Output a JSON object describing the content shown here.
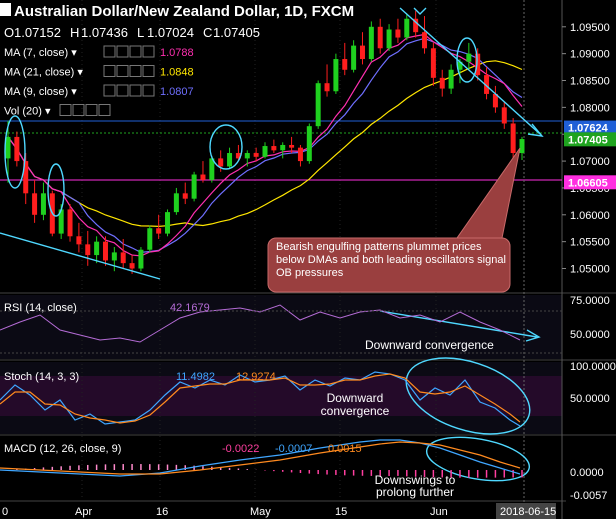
{
  "header": {
    "title": "Australian Dollar/New Zealand Dollar, 1D, FXCM",
    "ohlc": [
      {
        "k": "O",
        "v": "1.07152"
      },
      {
        "k": "H",
        "v": "1.07436"
      },
      {
        "k": "L",
        "v": "1.07024"
      },
      {
        "k": "C",
        "v": "1.07405"
      }
    ],
    "indicators": [
      {
        "label": "MA (7, close)",
        "value": "1.0788",
        "color": "#ff2fb0"
      },
      {
        "label": "MA (21, close)",
        "value": "1.0848",
        "color": "#ffe600"
      },
      {
        "label": "MA (9, close)",
        "value": "1.0807",
        "color": "#6f6fff"
      },
      {
        "label": "Vol (20)",
        "value": "",
        "color": "#ffffff"
      }
    ]
  },
  "price_axis": {
    "ticks": [
      "1.09500",
      "1.09000",
      "1.08500",
      "1.08000",
      "1.07500",
      "1.07000",
      "1.06500",
      "1.06000",
      "1.05500",
      "1.05000"
    ],
    "badges": [
      {
        "value": "1.07624",
        "color": "#1f5fd6"
      },
      {
        "value": "1.07405",
        "color": "#1fa31f"
      },
      {
        "value": "1.06605",
        "color": "#ff2fe0"
      }
    ]
  },
  "rsi": {
    "label": "RSI (14, close)",
    "value": "42.1679",
    "ticks": [
      "75.0000",
      "50.0000"
    ],
    "annotation": "Downward convergence"
  },
  "stoch": {
    "label": "Stoch (14, 3, 3)",
    "k": "11.4982",
    "d": "12.9274",
    "ticks": [
      "100.0000",
      "50.0000"
    ],
    "annotation": "Downward convergence"
  },
  "macd": {
    "label": "MACD (12, 26, close, 9)",
    "hist": "-0.0022",
    "signal": "-0.0007",
    "macd": "0.0015",
    "ticks": [
      "0.0000",
      "-0.0057"
    ],
    "annotation": "Downswings to prolong further"
  },
  "callout": "Bearish engulfing patterns plummet prices below DMAs and both leading oscillators signal OB pressures",
  "x_axis": {
    "labels": [
      "0",
      "Apr",
      "16",
      "May",
      "15",
      "Jun"
    ],
    "current": "2018-06-15"
  },
  "colors": {
    "up": "#1fd11f",
    "down": "#ff1e1e",
    "accent": "#4fd8ff"
  },
  "chart_data": {
    "type": "candlestick",
    "title": "Australian Dollar/New Zealand Dollar, 1D, FXCM",
    "ylim": [
      1.046,
      1.0985
    ],
    "candles": [
      [
        1.0705,
        1.0775,
        1.066,
        1.0745
      ],
      [
        1.0745,
        1.0755,
        1.069,
        1.07
      ],
      [
        1.07,
        1.0715,
        1.062,
        1.064
      ],
      [
        1.064,
        1.0665,
        1.0585,
        1.06
      ],
      [
        1.06,
        1.066,
        1.059,
        1.064
      ],
      [
        1.064,
        1.0645,
        1.056,
        1.0565
      ],
      [
        1.0565,
        1.062,
        1.0555,
        1.061
      ],
      [
        1.061,
        1.062,
        1.055,
        1.056
      ],
      [
        1.056,
        1.0585,
        1.053,
        1.0545
      ],
      [
        1.0545,
        1.057,
        1.0505,
        1.0525
      ],
      [
        1.0525,
        1.056,
        1.051,
        1.055
      ],
      [
        1.055,
        1.056,
        1.0505,
        1.0515
      ],
      [
        1.0515,
        1.054,
        1.0495,
        1.053
      ],
      [
        1.053,
        1.0555,
        1.05,
        1.051
      ],
      [
        1.051,
        1.0525,
        1.049,
        1.05
      ],
      [
        1.05,
        1.054,
        1.0495,
        1.0535
      ],
      [
        1.0535,
        1.058,
        1.053,
        1.0575
      ],
      [
        1.0575,
        1.06,
        1.0555,
        1.0565
      ],
      [
        1.0565,
        1.061,
        1.056,
        1.0605
      ],
      [
        1.0605,
        1.065,
        1.06,
        1.064
      ],
      [
        1.064,
        1.066,
        1.062,
        1.063
      ],
      [
        1.063,
        1.068,
        1.0625,
        1.0675
      ],
      [
        1.0675,
        1.07,
        1.066,
        1.0665
      ],
      [
        1.0665,
        1.071,
        1.066,
        1.0705
      ],
      [
        1.0705,
        1.072,
        1.068,
        1.069
      ],
      [
        1.069,
        1.0725,
        1.0685,
        1.0715
      ],
      [
        1.0715,
        1.073,
        1.07,
        1.0705
      ],
      [
        1.0705,
        1.072,
        1.069,
        1.0715
      ],
      [
        1.0715,
        1.0725,
        1.07,
        1.0708
      ],
      [
        1.0708,
        1.0735,
        1.0705,
        1.0728
      ],
      [
        1.0728,
        1.074,
        1.0715,
        1.072
      ],
      [
        1.072,
        1.0735,
        1.0705,
        1.073
      ],
      [
        1.073,
        1.0745,
        1.0715,
        1.0725
      ],
      [
        1.0725,
        1.073,
        1.069,
        1.07
      ],
      [
        1.07,
        1.077,
        1.0695,
        1.0765
      ],
      [
        1.0765,
        1.085,
        1.076,
        1.0845
      ],
      [
        1.0845,
        1.088,
        1.082,
        1.083
      ],
      [
        1.083,
        1.09,
        1.0825,
        1.089
      ],
      [
        1.089,
        1.092,
        1.086,
        1.087
      ],
      [
        1.087,
        1.0925,
        1.0865,
        1.0915
      ],
      [
        1.0915,
        1.094,
        1.088,
        1.089
      ],
      [
        1.089,
        1.096,
        1.0885,
        1.095
      ],
      [
        1.095,
        1.0965,
        1.09,
        1.091
      ],
      [
        1.091,
        1.0955,
        1.0905,
        1.0945
      ],
      [
        1.0945,
        1.0965,
        1.092,
        1.093
      ],
      [
        1.093,
        1.0975,
        1.0925,
        1.0965
      ],
      [
        1.0965,
        1.098,
        1.093,
        1.094
      ],
      [
        1.094,
        1.097,
        1.09,
        1.091
      ],
      [
        1.091,
        1.092,
        1.084,
        1.0855
      ],
      [
        1.0855,
        1.087,
        1.082,
        1.0835
      ],
      [
        1.0835,
        1.088,
        1.0825,
        1.087
      ],
      [
        1.087,
        1.089,
        1.0845,
        1.0885
      ],
      [
        1.0885,
        1.092,
        1.087,
        1.09
      ],
      [
        1.09,
        1.091,
        1.085,
        1.086
      ],
      [
        1.086,
        1.0875,
        1.0815,
        1.0825
      ],
      [
        1.0825,
        1.084,
        1.079,
        1.08
      ],
      [
        1.08,
        1.081,
        1.076,
        1.077
      ],
      [
        1.077,
        1.078,
        1.07,
        1.0715
      ],
      [
        1.0715,
        1.0745,
        1.0702,
        1.0741
      ]
    ]
  }
}
